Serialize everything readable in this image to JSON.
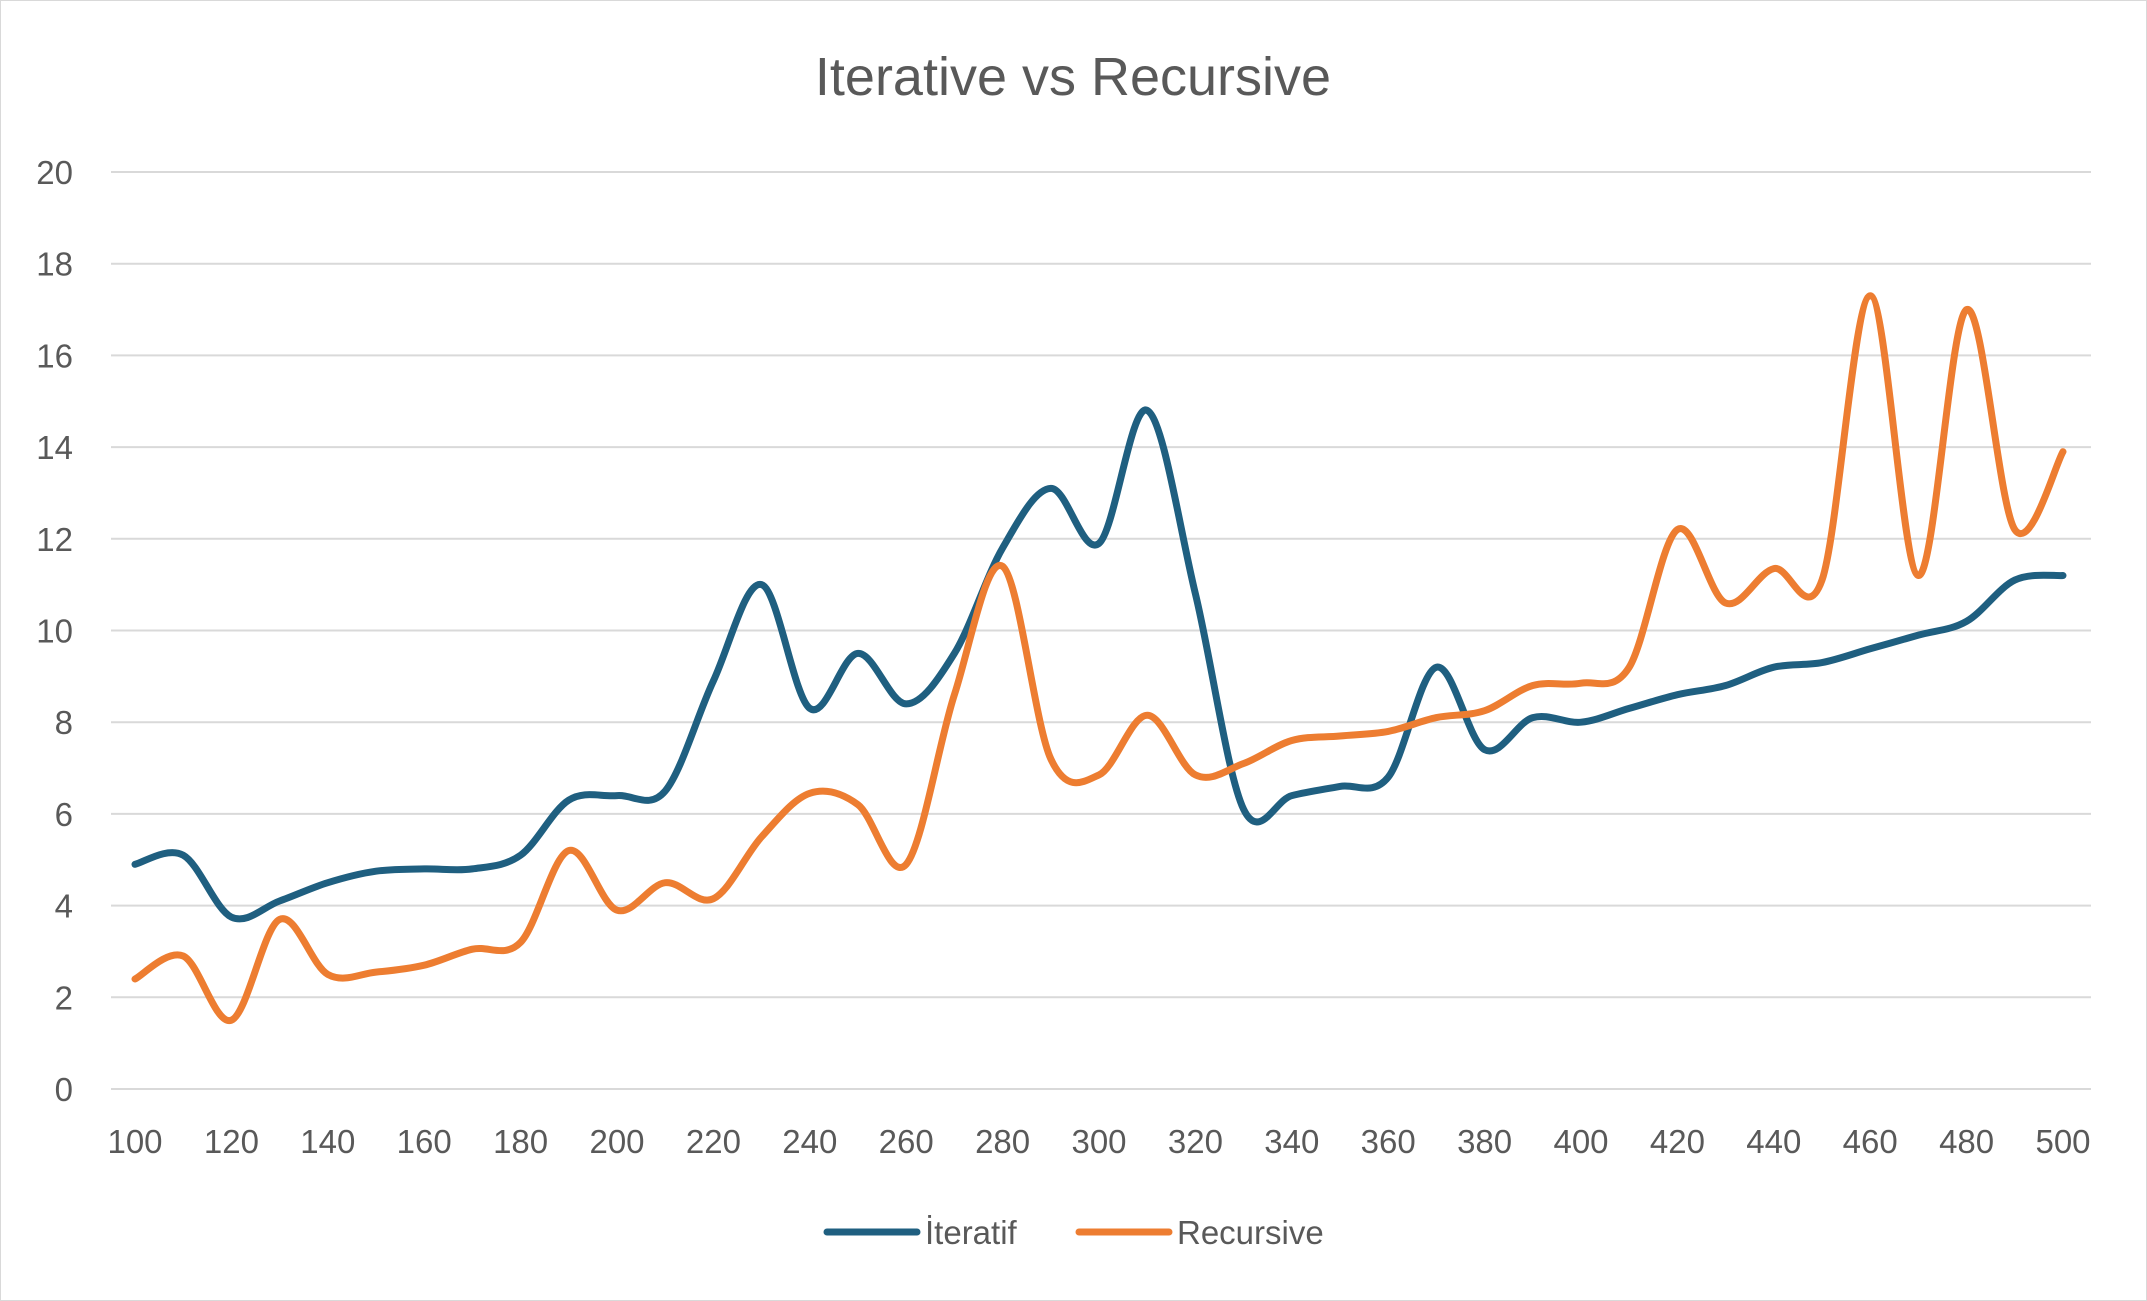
{
  "chart_data": {
    "type": "line",
    "title": "Iterative vs Recursive",
    "xlabel": "",
    "ylabel": "",
    "x": [
      100,
      110,
      120,
      130,
      140,
      150,
      160,
      170,
      180,
      190,
      200,
      210,
      220,
      230,
      240,
      250,
      260,
      270,
      280,
      290,
      300,
      310,
      320,
      330,
      340,
      350,
      360,
      370,
      380,
      390,
      400,
      410,
      420,
      430,
      440,
      450,
      460,
      470,
      480,
      490,
      500
    ],
    "x_ticks": [
      "100",
      "120",
      "140",
      "160",
      "180",
      "200",
      "220",
      "240",
      "260",
      "280",
      "300",
      "320",
      "340",
      "360",
      "380",
      "400",
      "420",
      "440",
      "460",
      "480",
      "500"
    ],
    "y_ticks": [
      "0",
      "2",
      "4",
      "6",
      "8",
      "10",
      "12",
      "14",
      "16",
      "18",
      "20"
    ],
    "xlim": [
      100,
      500
    ],
    "ylim": [
      0,
      20
    ],
    "grid": "horizontal",
    "legend_position": "bottom",
    "smooth": true,
    "series": [
      {
        "name": "İteratif",
        "color": "#1f5f80",
        "values": [
          4.9,
          5.1,
          3.75,
          4.1,
          4.5,
          4.75,
          4.8,
          4.8,
          5.1,
          6.3,
          6.4,
          6.5,
          8.9,
          11.0,
          8.3,
          9.5,
          8.4,
          9.5,
          11.8,
          13.1,
          11.9,
          14.8,
          10.8,
          6.1,
          6.4,
          6.6,
          6.8,
          9.2,
          7.4,
          8.1,
          8.0,
          8.3,
          8.6,
          8.8,
          9.2,
          9.3,
          9.6,
          9.9,
          10.2,
          11.1,
          11.2
        ]
      },
      {
        "name": "Recursive",
        "color": "#ed7d31",
        "values": [
          2.4,
          2.9,
          1.5,
          3.7,
          2.5,
          2.55,
          2.7,
          3.05,
          3.2,
          5.2,
          3.9,
          4.5,
          4.15,
          5.5,
          6.45,
          6.2,
          4.9,
          8.6,
          11.4,
          7.2,
          6.85,
          8.15,
          6.85,
          7.1,
          7.6,
          7.7,
          7.8,
          8.1,
          8.25,
          8.8,
          8.85,
          9.2,
          12.2,
          10.6,
          11.35,
          11.1,
          17.3,
          11.2,
          17.0,
          12.2,
          13.9
        ]
      }
    ]
  }
}
